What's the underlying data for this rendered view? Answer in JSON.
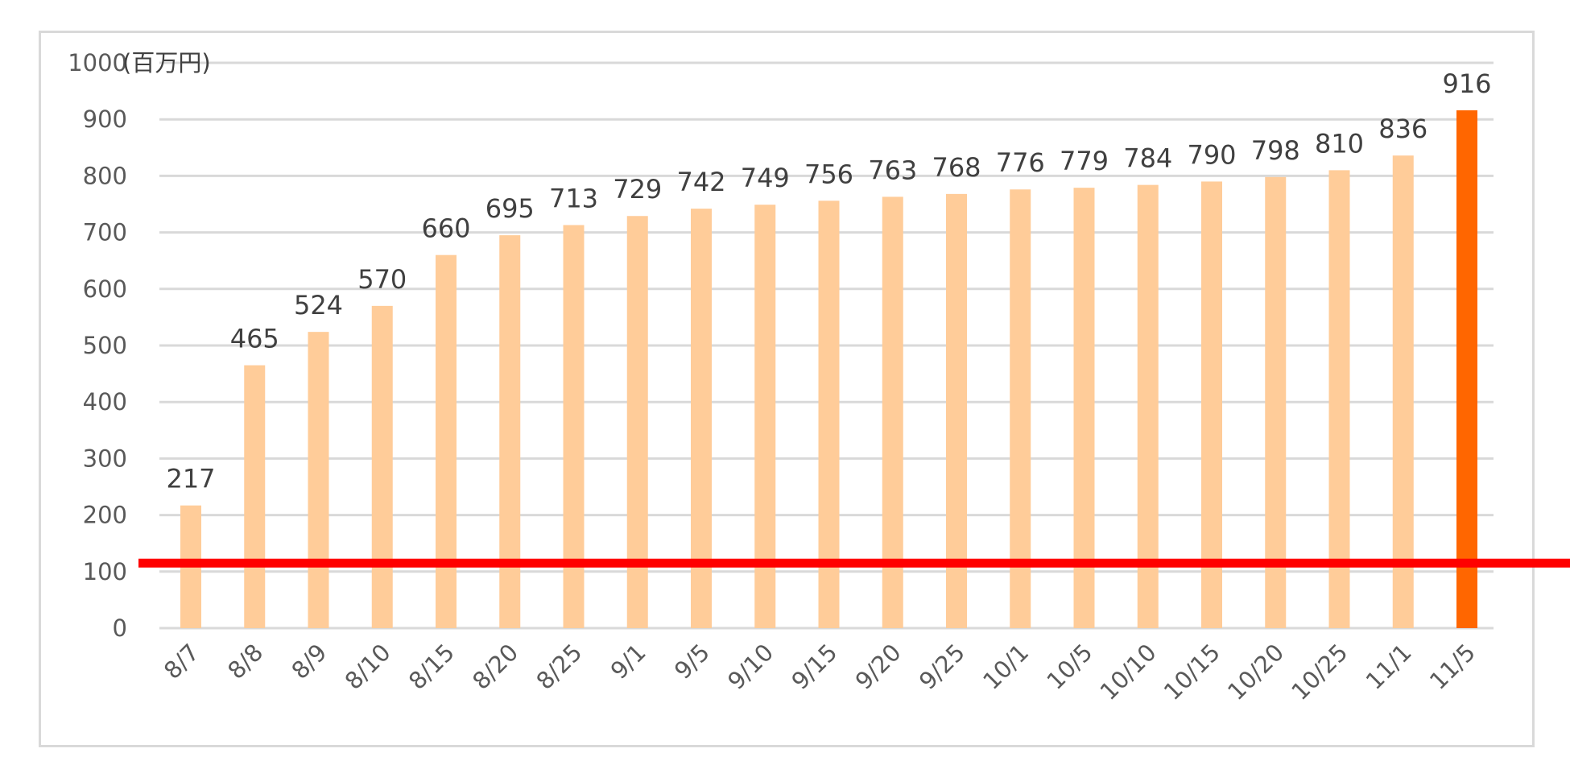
{
  "chart_data": {
    "type": "bar",
    "unit_label": "(百万円)",
    "categories": [
      "8/7",
      "8/8",
      "8/9",
      "8/10",
      "8/15",
      "8/20",
      "8/25",
      "9/1",
      "9/5",
      "9/10",
      "9/15",
      "9/20",
      "9/25",
      "10/1",
      "10/5",
      "10/10",
      "10/15",
      "10/20",
      "10/25",
      "11/1",
      "11/5"
    ],
    "values": [
      217,
      465,
      524,
      570,
      660,
      695,
      713,
      729,
      742,
      749,
      756,
      763,
      768,
      776,
      779,
      784,
      790,
      798,
      810,
      836,
      916
    ],
    "data_labels": [
      "217",
      "465",
      "524",
      "570",
      "660",
      "695",
      "713",
      "729",
      "742",
      "749",
      "756",
      "763",
      "768",
      "776",
      "779",
      "784",
      "790",
      "798",
      "810",
      "836",
      "916"
    ],
    "y_ticks": [
      "0",
      "100",
      "200",
      "300",
      "400",
      "500",
      "600",
      "700",
      "800",
      "900",
      "1000"
    ],
    "ylim": [
      0,
      1000
    ],
    "grid": true,
    "reference_line": 115,
    "colors": {
      "bar": "#ffcc99",
      "highlight_bar": "#ff6600",
      "reference_line": "#ff0000",
      "grid": "#d9d9d9"
    },
    "highlight_index": 20
  }
}
